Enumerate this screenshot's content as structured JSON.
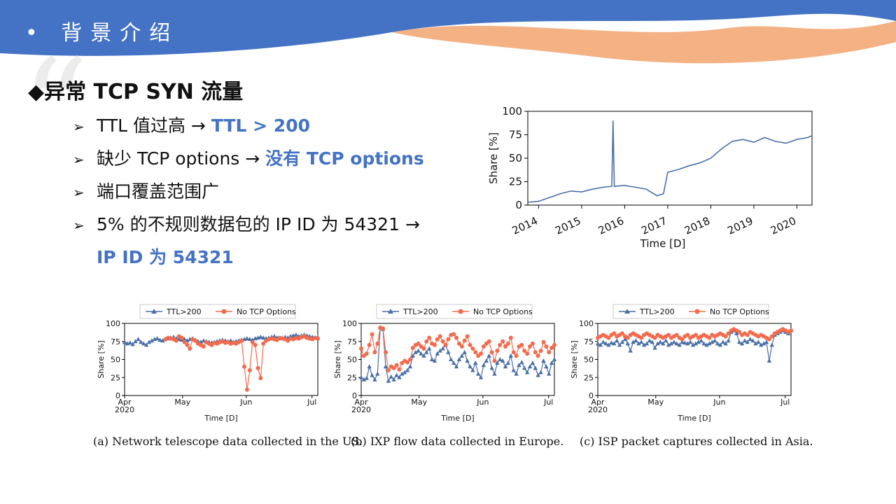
{
  "header": {
    "title": "• 背景介绍",
    "colors": {
      "blue": "#4472c4",
      "orange": "#f4b183"
    }
  },
  "heading": "◆异常 TCP SYN 流量",
  "bullets": [
    {
      "marker": "➢",
      "text": "TTL 值过高 → ",
      "highlight": "TTL > 200"
    },
    {
      "marker": "➢",
      "text": "缺少 TCP options → ",
      "highlight": "没有 TCP options"
    },
    {
      "marker": "➢",
      "text": "端口覆盖范围广",
      "highlight": ""
    },
    {
      "marker": "➢",
      "text": "5%  的不规则数据包的  IP  ID  为  54321  →",
      "highlight": "IP ID 为 54321"
    }
  ],
  "chart_data": [
    {
      "type": "line",
      "xlabel": "Time [D]",
      "ylabel": "Share [%]",
      "ylim": [
        0,
        100
      ],
      "yticks": [
        "0",
        "25",
        "50",
        "75",
        "100"
      ],
      "xticks": [
        "2014",
        "2015",
        "2016",
        "2017",
        "2018",
        "2019",
        "2020"
      ],
      "color": "#4a6fa5",
      "series": [
        {
          "x": [
            2013.75,
            2014.0,
            2014.25,
            2014.5,
            2014.75,
            2015.0,
            2015.25,
            2015.5,
            2015.7,
            2015.73,
            2015.76,
            2016.0,
            2016.25,
            2016.5,
            2016.75,
            2016.9,
            2017.0,
            2017.25,
            2017.5,
            2017.75,
            2018.0,
            2018.25,
            2018.5,
            2018.75,
            2019.0,
            2019.25,
            2019.5,
            2019.75,
            2020.0,
            2020.25,
            2020.35
          ],
          "values": [
            3,
            4,
            8,
            12,
            15,
            14,
            17,
            19,
            20,
            90,
            20,
            21,
            19,
            17,
            10,
            12,
            35,
            38,
            42,
            45,
            50,
            60,
            68,
            70,
            67,
            72,
            68,
            66,
            70,
            72,
            74
          ]
        }
      ]
    },
    {
      "type": "line",
      "caption": "(a) Network telescope data collected in the US.",
      "xlabel": "Time [D]",
      "ylabel": "Share [%]",
      "ylim": [
        0,
        100
      ],
      "yticks": [
        "0",
        "25",
        "50",
        "75",
        "100"
      ],
      "xticks": [
        "Apr\n2020",
        "May",
        "Jun",
        "Jul"
      ],
      "legend": [
        "TTL>200",
        "No TCP Options"
      ],
      "colors": [
        "#4a6fa5",
        "#f26b4d"
      ],
      "series": [
        {
          "name": "TTL>200",
          "values": [
            74,
            72,
            73,
            71,
            75,
            78,
            74,
            72,
            70,
            74,
            76,
            78,
            79,
            77,
            76,
            78,
            79,
            80,
            81,
            79,
            78,
            77,
            78,
            76,
            78,
            79,
            77,
            75,
            74,
            76,
            75,
            74,
            73,
            74,
            75,
            76,
            77,
            76,
            75,
            76,
            74,
            75,
            76,
            77,
            78,
            79,
            78,
            77,
            79,
            80,
            81,
            80,
            79,
            80,
            81,
            82,
            80,
            79,
            80,
            81,
            80,
            82,
            83,
            84,
            82,
            83,
            84,
            83,
            82,
            81,
            80,
            81
          ]
        },
        {
          "name": "No TCP Options",
          "values": [
            null,
            null,
            null,
            null,
            null,
            null,
            null,
            null,
            null,
            null,
            null,
            null,
            null,
            null,
            null,
            78,
            80,
            79,
            78,
            76,
            82,
            80,
            74,
            70,
            65,
            78,
            76,
            72,
            70,
            68,
            74,
            72,
            70,
            73,
            72,
            74,
            75,
            73,
            74,
            72,
            73,
            72,
            74,
            76,
            40,
            8,
            35,
            74,
            70,
            38,
            24,
            72,
            76,
            78,
            79,
            78,
            77,
            80,
            79,
            78,
            76,
            79,
            78,
            80,
            79,
            81,
            82,
            80,
            79,
            78,
            80,
            79
          ]
        }
      ]
    },
    {
      "type": "line",
      "caption": "(b) IXP flow data collected in Europe.",
      "xlabel": "Time [D]",
      "ylabel": "Share [%]",
      "ylim": [
        0,
        100
      ],
      "yticks": [
        "0",
        "25",
        "50",
        "75",
        "100"
      ],
      "xticks": [
        "Apr\n2020",
        "May",
        "Jun",
        "Jul"
      ],
      "legend": [
        "TTL>200",
        "No TCP Options"
      ],
      "colors": [
        "#4a6fa5",
        "#f26b4d"
      ],
      "series": [
        {
          "name": "TTL>200",
          "values": [
            25,
            22,
            24,
            40,
            28,
            22,
            30,
            94,
            92,
            40,
            20,
            26,
            22,
            28,
            25,
            30,
            32,
            35,
            40,
            55,
            60,
            62,
            58,
            55,
            60,
            65,
            50,
            48,
            58,
            62,
            65,
            70,
            60,
            50,
            45,
            40,
            50,
            55,
            60,
            48,
            40,
            35,
            45,
            30,
            25,
            42,
            48,
            55,
            38,
            30,
            45,
            50,
            48,
            40,
            45,
            55,
            35,
            30,
            42,
            46,
            38,
            32,
            40,
            45,
            38,
            28,
            32,
            48,
            40,
            30,
            45,
            50
          ]
        },
        {
          "name": "No TCP Options",
          "values": [
            65,
            55,
            58,
            70,
            85,
            60,
            72,
            94,
            93,
            60,
            35,
            40,
            38,
            42,
            36,
            45,
            48,
            46,
            50,
            66,
            70,
            72,
            68,
            65,
            75,
            80,
            72,
            70,
            78,
            82,
            75,
            70,
            78,
            84,
            85,
            80,
            72,
            68,
            76,
            82,
            70,
            65,
            60,
            55,
            58,
            68,
            72,
            75,
            60,
            48,
            62,
            70,
            75,
            68,
            72,
            80,
            60,
            55,
            68,
            70,
            62,
            58,
            68,
            72,
            60,
            55,
            62,
            74,
            68,
            60,
            66,
            70
          ]
        }
      ]
    },
    {
      "type": "line",
      "caption": "(c) ISP packet captures collected in Asia.",
      "xlabel": "Time [D]",
      "ylabel": "Share [%]",
      "ylim": [
        0,
        100
      ],
      "yticks": [
        "0",
        "25",
        "50",
        "75",
        "100"
      ],
      "xticks": [
        "Apr\n2020",
        "May",
        "Jun",
        "Jul"
      ],
      "legend": [
        "TTL>200",
        "No TCP Options"
      ],
      "colors": [
        "#4a6fa5",
        "#f26b4d"
      ],
      "series": [
        {
          "name": "TTL>200",
          "values": [
            72,
            70,
            74,
            72,
            70,
            73,
            72,
            76,
            70,
            74,
            78,
            72,
            62,
            74,
            76,
            72,
            74,
            70,
            72,
            76,
            74,
            66,
            72,
            74,
            72,
            76,
            70,
            72,
            74,
            72,
            70,
            74,
            73,
            72,
            74,
            70,
            72,
            74,
            76,
            72,
            70,
            72,
            74,
            76,
            72,
            70,
            74,
            72,
            76,
            88,
            90,
            86,
            74,
            72,
            76,
            74,
            78,
            76,
            72,
            74,
            70,
            72,
            74,
            48,
            70,
            84,
            86,
            88,
            90,
            88,
            86,
            90
          ]
        },
        {
          "name": "No TCP Options",
          "values": [
            80,
            82,
            84,
            82,
            80,
            84,
            86,
            82,
            84,
            86,
            82,
            80,
            84,
            86,
            84,
            82,
            80,
            84,
            86,
            84,
            82,
            80,
            84,
            82,
            80,
            82,
            84,
            80,
            82,
            84,
            80,
            78,
            82,
            84,
            80,
            82,
            84,
            80,
            82,
            84,
            82,
            80,
            84,
            82,
            84,
            86,
            84,
            82,
            86,
            90,
            92,
            90,
            88,
            84,
            86,
            84,
            88,
            86,
            84,
            82,
            84,
            82,
            80,
            78,
            82,
            86,
            88,
            90,
            92,
            90,
            88,
            90
          ]
        }
      ]
    }
  ]
}
